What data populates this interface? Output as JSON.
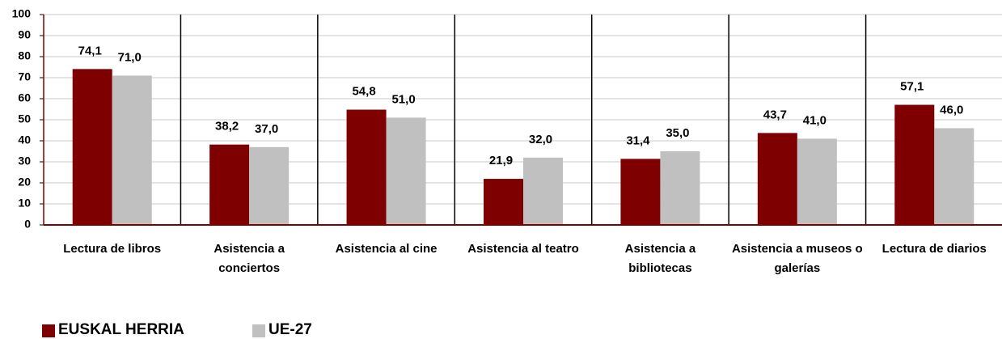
{
  "chart_data": {
    "type": "bar",
    "categories": [
      "Lectura de libros",
      "Asistencia a conciertos",
      "Asistencia al cine",
      "Asistencia al teatro",
      "Asistencia a bibliotecas",
      "Asistencia a museos o galerías",
      "Lectura de diarios"
    ],
    "series": [
      {
        "name": "EUSKAL HERRIA",
        "color": "#7f0000",
        "values": [
          74.1,
          38.2,
          54.8,
          21.9,
          31.4,
          43.7,
          57.1
        ],
        "value_labels": [
          "74,1",
          "38,2",
          "54,8",
          "21,9",
          "31,4",
          "43,7",
          "57,1"
        ]
      },
      {
        "name": "UE-27",
        "color": "#c0c0c0",
        "values": [
          71.0,
          37.0,
          51.0,
          32.0,
          35.0,
          41.0,
          46.0
        ],
        "value_labels": [
          "71,0",
          "37,0",
          "51,0",
          "32,0",
          "35,0",
          "41,0",
          "46,0"
        ]
      }
    ],
    "ylim": [
      0,
      100
    ],
    "yticks": [
      0,
      10,
      20,
      30,
      40,
      50,
      60,
      70,
      80,
      90,
      100
    ],
    "grid": true,
    "legend": "bottom-left"
  }
}
